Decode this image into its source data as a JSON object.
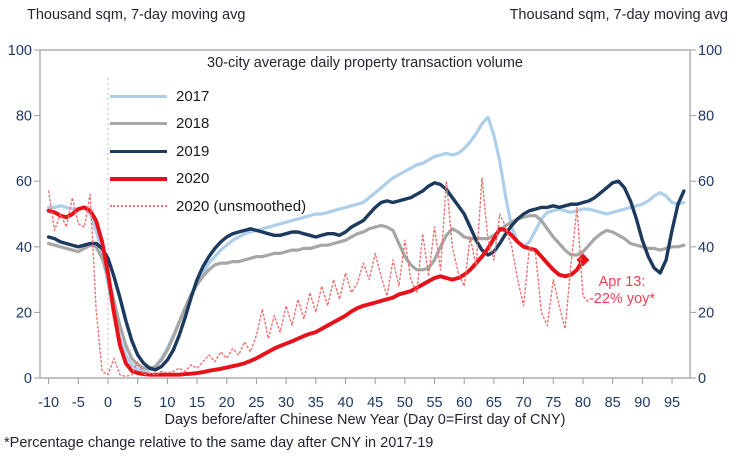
{
  "header": {
    "left_unit_label": "Thousand sqm, 7-day moving avg",
    "right_unit_label": "Thousand sqm, 7-day moving avg"
  },
  "footnote": "*Percentage change relative to the same day after CNY in 2017-19",
  "colors": {
    "axis": "#9c9c9c",
    "tick_text": "#1f3864",
    "day0_line": "#bbbbbb",
    "annotation": "#ef4155"
  },
  "chart_data": {
    "type": "line",
    "title": "30-city average daily property transaction volume",
    "xlabel": "Days before/after Chinese New Year (Day 0=First day of CNY)",
    "ylabel_left": "Thousand sqm, 7-day moving avg",
    "ylabel_right": "Thousand sqm, 7-day moving avg",
    "ylim": [
      0,
      100
    ],
    "yticks": [
      0,
      20,
      40,
      60,
      80,
      100
    ],
    "xticks": [
      -10,
      -5,
      0,
      5,
      10,
      15,
      20,
      25,
      30,
      35,
      40,
      45,
      50,
      55,
      60,
      65,
      70,
      75,
      80,
      85,
      90,
      95
    ],
    "grid": false,
    "day0_reference_line": true,
    "legend_position": "upper-left-inside",
    "annotation": {
      "line1": "Apr 13:",
      "line2": "-22% yoy*",
      "day": 80,
      "value": 36,
      "color": "#ef4155"
    },
    "series": [
      {
        "name": "2017",
        "color": "#aecfe9",
        "width": 3.2,
        "style": "solid",
        "day_start": -10,
        "values": [
          52,
          52,
          52.5,
          52,
          51.5,
          51.5,
          52,
          50,
          45,
          38,
          29,
          20,
          12,
          7,
          4,
          2.5,
          2,
          2.5,
          3.5,
          6,
          9,
          13,
          17,
          21,
          25,
          29,
          32,
          35,
          37,
          39,
          40.5,
          42,
          43,
          44,
          44.5,
          45,
          45.5,
          46,
          46.5,
          47,
          47.5,
          48,
          48.5,
          49,
          49.5,
          50,
          50,
          50.5,
          51,
          51.5,
          52,
          52.5,
          53,
          53.5,
          55,
          56.5,
          58,
          59.5,
          61,
          62,
          63,
          64,
          65,
          65.5,
          66.5,
          67.5,
          68,
          68.5,
          68,
          68.5,
          70,
          72,
          74.5,
          77.5,
          79.5,
          74,
          66,
          55,
          46,
          41.5,
          40,
          41.5,
          45,
          48.5,
          50.5,
          51,
          51.5,
          51,
          50.5,
          51,
          51.5,
          51.5,
          51,
          50.5,
          50,
          50.5,
          51,
          51.5,
          52,
          52.5,
          53,
          54,
          55.5,
          56.5,
          55.5,
          53.5,
          53,
          53.5
        ]
      },
      {
        "name": "2018",
        "color": "#a6a6a6",
        "width": 3.2,
        "style": "solid",
        "day_start": -10,
        "values": [
          41,
          40.5,
          40,
          39.5,
          39,
          38.5,
          39.5,
          40.5,
          40,
          36.5,
          31,
          23.5,
          16,
          10,
          6,
          4,
          3,
          3,
          3.5,
          5.5,
          8.5,
          12.5,
          17,
          21.5,
          25.5,
          28.5,
          31,
          33,
          34.5,
          35,
          35,
          35.5,
          35.5,
          36,
          36.5,
          37,
          37,
          37.5,
          38,
          38,
          38.5,
          39,
          39,
          39.5,
          39.5,
          40,
          40.5,
          40.5,
          41,
          41.5,
          42,
          43,
          44,
          44.5,
          45.5,
          46,
          46.5,
          46,
          45,
          41,
          37,
          34.5,
          33,
          33,
          33.5,
          36,
          40,
          43.5,
          45.5,
          44.5,
          43,
          42.5,
          42.5,
          42.5,
          42.5,
          43.5,
          45,
          46.5,
          47.5,
          48.5,
          49,
          49.5,
          49.5,
          48,
          45.5,
          43,
          41,
          39,
          37.5,
          37.5,
          38.5,
          40.5,
          42.5,
          44,
          45,
          44.5,
          43.5,
          42.5,
          41,
          40.5,
          40,
          39.5,
          39.5,
          39,
          39.5,
          40,
          40,
          40.5
        ]
      },
      {
        "name": "2019",
        "color": "#1c3a5e",
        "width": 3.4,
        "style": "solid",
        "day_start": -10,
        "values": [
          43,
          42.5,
          41.5,
          41,
          40.5,
          40,
          40.5,
          41,
          41,
          39.5,
          36.5,
          31,
          24.5,
          17.5,
          11.5,
          7,
          4.5,
          3,
          2.5,
          3.5,
          5.5,
          8.5,
          13,
          18.5,
          24.5,
          30,
          34,
          37,
          39.5,
          41.5,
          43,
          44,
          44.5,
          45,
          45.5,
          45,
          44.5,
          44,
          43.5,
          43.5,
          44,
          44.5,
          44.5,
          44,
          43.5,
          43,
          43.5,
          44,
          44,
          43.5,
          44.5,
          46,
          47,
          48,
          50,
          52,
          53.5,
          54,
          53.5,
          54,
          54.5,
          55,
          56,
          57,
          58.5,
          59.5,
          59,
          57.5,
          55,
          52.5,
          50,
          46,
          42,
          39,
          37.5,
          38.5,
          41,
          44,
          46.5,
          48.5,
          50,
          51,
          51.5,
          52,
          52,
          52.5,
          52,
          52.5,
          53,
          53,
          53.5,
          54,
          55,
          56.5,
          58,
          59.5,
          60,
          58,
          54,
          48.5,
          42,
          37,
          33.5,
          32,
          36,
          45,
          53,
          57
        ]
      },
      {
        "name": "2020",
        "color": "#e8111a",
        "width": 3.9,
        "style": "solid",
        "day_start": -10,
        "end_marker": "diamond",
        "values": [
          51,
          50.5,
          49.5,
          49,
          50,
          51.5,
          52,
          51,
          48,
          41.5,
          32,
          20,
          10,
          4.5,
          2.2,
          1.5,
          1.2,
          1,
          1,
          1,
          1,
          1,
          1,
          1.2,
          1.3,
          1.5,
          1.8,
          2.2,
          2.5,
          2.8,
          3.2,
          3.6,
          4,
          4.5,
          5.2,
          6,
          7,
          8,
          9,
          9.8,
          10.5,
          11.2,
          12,
          12.8,
          13.5,
          14,
          15,
          16,
          17,
          18,
          19,
          20.3,
          21.3,
          22,
          22.5,
          23,
          23.5,
          24,
          24.5,
          25.5,
          26,
          26.5,
          27.5,
          28.5,
          29.5,
          30.5,
          31,
          30.5,
          30,
          30.5,
          31.5,
          33,
          35,
          37,
          39.5,
          42.5,
          45.5,
          45,
          43.5,
          41.5,
          40,
          39.5,
          39,
          37,
          35,
          33,
          31.5,
          31,
          31.5,
          33,
          36
        ]
      },
      {
        "name": "2020 (unsmoothed)",
        "color": "#f07070",
        "width": 1.4,
        "style": "dotted",
        "day_start": -10,
        "values": [
          57,
          45,
          50,
          46,
          55,
          47,
          46,
          56,
          21,
          2,
          1,
          6,
          1,
          0.5,
          1,
          5,
          1,
          1.5,
          1,
          2,
          1.5,
          2,
          3,
          2,
          4,
          3,
          5,
          7,
          5,
          8,
          6,
          9,
          7,
          11,
          8,
          13,
          21,
          12,
          19,
          14,
          22,
          16,
          24,
          18,
          26,
          20,
          28,
          22,
          30,
          24,
          32,
          26,
          29,
          35,
          30,
          38,
          31,
          25,
          36,
          28,
          42,
          30,
          26,
          44,
          31,
          46,
          33,
          60,
          40,
          32,
          28,
          43,
          34,
          61,
          42,
          36,
          50,
          46,
          40,
          30,
          22,
          40,
          38,
          20,
          16,
          30,
          22,
          15,
          35,
          52,
          25,
          23
        ]
      }
    ]
  }
}
